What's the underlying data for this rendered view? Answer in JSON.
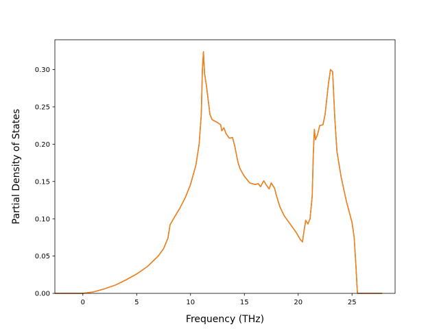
{
  "chart_data": {
    "type": "line",
    "title": "",
    "xlabel": "Frequency (THz)",
    "ylabel": "Partial Density of States",
    "xlim": [
      -2.6,
      29.0
    ],
    "ylim": [
      0.0,
      0.34
    ],
    "xticks": [
      0,
      5,
      10,
      15,
      20,
      25
    ],
    "yticks": [
      0.0,
      0.05,
      0.1,
      0.15,
      0.2,
      0.25,
      0.3
    ],
    "ytick_labels": [
      "0.00",
      "0.05",
      "0.10",
      "0.15",
      "0.20",
      "0.25",
      "0.30"
    ],
    "grid": false,
    "legend": "none",
    "series": [
      {
        "color": "#1f77b4",
        "x": [
          -2.6,
          0.0,
          1.0,
          2.0,
          3.0,
          4.0,
          5.0,
          6.0,
          7.0,
          7.5,
          7.9,
          8.1,
          8.5,
          9.0,
          9.5,
          10.0,
          10.5,
          10.8,
          11.0,
          11.1,
          11.2,
          11.3,
          11.5,
          11.8,
          12.0,
          12.5,
          12.8,
          12.9,
          13.1,
          13.3,
          13.6,
          13.9,
          14.1,
          14.4,
          14.6,
          15.0,
          15.5,
          16.0,
          16.3,
          16.5,
          16.8,
          17.0,
          17.3,
          17.5,
          17.8,
          18.0,
          18.3,
          18.7,
          19.2,
          19.8,
          20.2,
          20.4,
          20.5,
          20.7,
          20.9,
          21.1,
          21.3,
          21.4,
          21.5,
          21.6,
          21.8,
          22.0,
          22.3,
          22.5,
          22.8,
          23.0,
          23.2,
          23.4,
          23.6,
          24.0,
          24.5,
          25.0,
          25.2,
          25.35,
          25.5,
          27.8
        ],
        "y": [
          0.0,
          0.0,
          0.002,
          0.006,
          0.011,
          0.018,
          0.026,
          0.036,
          0.05,
          0.06,
          0.074,
          0.092,
          0.102,
          0.114,
          0.128,
          0.146,
          0.172,
          0.2,
          0.24,
          0.3,
          0.324,
          0.295,
          0.276,
          0.24,
          0.233,
          0.229,
          0.226,
          0.218,
          0.222,
          0.214,
          0.208,
          0.209,
          0.198,
          0.176,
          0.167,
          0.157,
          0.148,
          0.146,
          0.147,
          0.143,
          0.151,
          0.146,
          0.14,
          0.148,
          0.141,
          0.13,
          0.116,
          0.104,
          0.094,
          0.082,
          0.072,
          0.069,
          0.08,
          0.098,
          0.093,
          0.1,
          0.13,
          0.185,
          0.22,
          0.206,
          0.213,
          0.225,
          0.226,
          0.24,
          0.28,
          0.3,
          0.297,
          0.235,
          0.19,
          0.155,
          0.122,
          0.095,
          0.075,
          0.04,
          0.0,
          0.0
        ]
      },
      {
        "color": "#ff7f0e",
        "x": [
          -2.6,
          0.0,
          1.0,
          2.0,
          3.0,
          4.0,
          5.0,
          6.0,
          7.0,
          7.5,
          7.9,
          8.1,
          8.5,
          9.0,
          9.5,
          10.0,
          10.5,
          10.8,
          11.0,
          11.1,
          11.2,
          11.3,
          11.5,
          11.8,
          12.0,
          12.5,
          12.8,
          12.9,
          13.1,
          13.3,
          13.6,
          13.9,
          14.1,
          14.4,
          14.6,
          15.0,
          15.5,
          16.0,
          16.3,
          16.5,
          16.8,
          17.0,
          17.3,
          17.5,
          17.8,
          18.0,
          18.3,
          18.7,
          19.2,
          19.8,
          20.2,
          20.4,
          20.5,
          20.7,
          20.9,
          21.1,
          21.3,
          21.4,
          21.5,
          21.6,
          21.8,
          22.0,
          22.3,
          22.5,
          22.8,
          23.0,
          23.2,
          23.4,
          23.6,
          24.0,
          24.5,
          25.0,
          25.2,
          25.35,
          25.5,
          27.8
        ],
        "y": [
          0.0,
          0.0,
          0.002,
          0.006,
          0.011,
          0.018,
          0.026,
          0.036,
          0.05,
          0.06,
          0.074,
          0.092,
          0.102,
          0.114,
          0.128,
          0.146,
          0.172,
          0.2,
          0.24,
          0.3,
          0.324,
          0.295,
          0.276,
          0.24,
          0.233,
          0.229,
          0.226,
          0.218,
          0.222,
          0.214,
          0.208,
          0.209,
          0.198,
          0.176,
          0.167,
          0.157,
          0.148,
          0.146,
          0.147,
          0.143,
          0.151,
          0.146,
          0.14,
          0.148,
          0.141,
          0.13,
          0.116,
          0.104,
          0.094,
          0.082,
          0.072,
          0.069,
          0.08,
          0.098,
          0.093,
          0.1,
          0.13,
          0.185,
          0.22,
          0.206,
          0.213,
          0.225,
          0.226,
          0.24,
          0.28,
          0.3,
          0.297,
          0.235,
          0.19,
          0.155,
          0.122,
          0.095,
          0.075,
          0.04,
          0.0,
          0.0
        ]
      }
    ]
  }
}
